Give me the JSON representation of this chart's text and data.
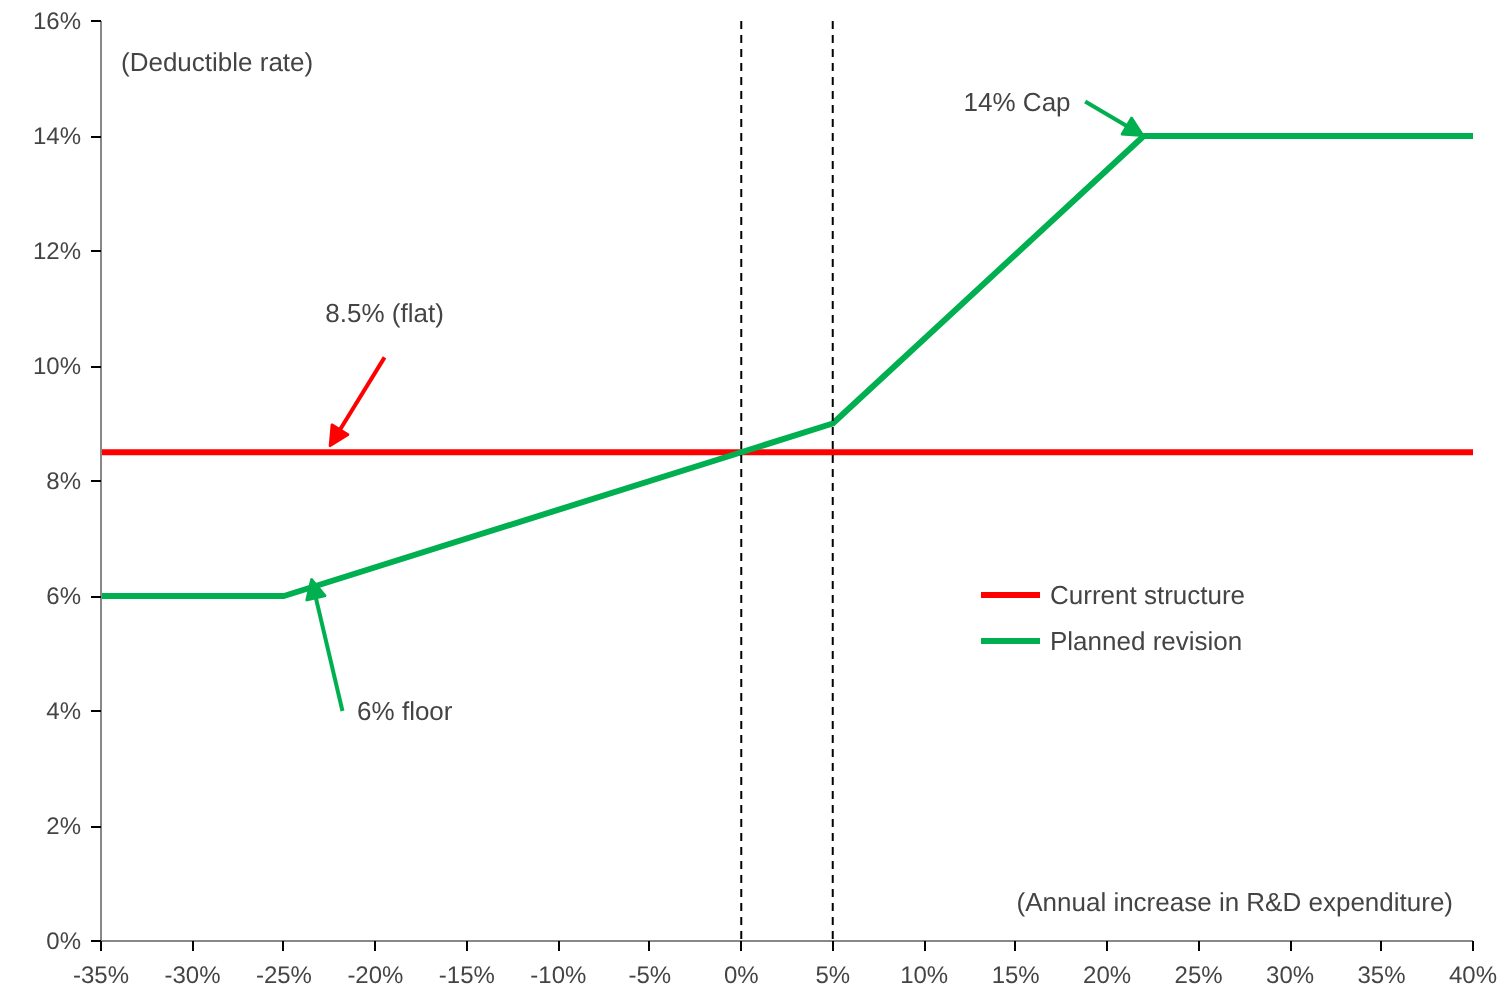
{
  "chart_data": {
    "type": "line",
    "xlabel": "(Annual increase in R&D expenditure)",
    "ylabel": "(Deductible rate)",
    "series": [
      {
        "name": "Current structure",
        "color": "#ff0000",
        "x": [
          -35,
          40
        ],
        "values": [
          8.5,
          8.5
        ]
      },
      {
        "name": "Planned revision",
        "color": "#00b050",
        "x": [
          -35,
          -25,
          0,
          5,
          22,
          40
        ],
        "values": [
          6,
          6,
          8.5,
          9,
          14,
          14
        ]
      }
    ],
    "xlim": [
      -35,
      40
    ],
    "xticks": [
      {
        "value": -35,
        "label": "-35%"
      },
      {
        "value": -30,
        "label": "-30%"
      },
      {
        "value": -25,
        "label": "-25%"
      },
      {
        "value": -20,
        "label": "-20%"
      },
      {
        "value": -15,
        "label": "-15%"
      },
      {
        "value": -10,
        "label": "-10%"
      },
      {
        "value": -5,
        "label": "-5%"
      },
      {
        "value": 0,
        "label": "0%"
      },
      {
        "value": 5,
        "label": "5%"
      },
      {
        "value": 10,
        "label": "10%"
      },
      {
        "value": 15,
        "label": "15%"
      },
      {
        "value": 20,
        "label": "20%"
      },
      {
        "value": 25,
        "label": "25%"
      },
      {
        "value": 30,
        "label": "30%"
      },
      {
        "value": 35,
        "label": "35%"
      },
      {
        "value": 40,
        "label": "40%"
      }
    ],
    "ylim": [
      0,
      16
    ],
    "yticks": [
      {
        "value": 0,
        "label": "0%"
      },
      {
        "value": 2,
        "label": "2%"
      },
      {
        "value": 4,
        "label": "4%"
      },
      {
        "value": 6,
        "label": "6%"
      },
      {
        "value": 8,
        "label": "8%"
      },
      {
        "value": 10,
        "label": "10%"
      },
      {
        "value": 12,
        "label": "12%"
      },
      {
        "value": 14,
        "label": "14%"
      },
      {
        "value": 16,
        "label": "16%"
      }
    ],
    "ref_lines": [
      {
        "axis": "x",
        "value": 0,
        "color": "#000000",
        "line_style": "dashed"
      },
      {
        "axis": "x",
        "value": 5,
        "color": "#000000",
        "line_style": "dashed"
      }
    ],
    "annotations": [
      {
        "text": "8.5% (flat)",
        "x": -22.5,
        "y": 8.6
      },
      {
        "text": "6% floor",
        "x": -23.5,
        "y": 6.3
      },
      {
        "text": "14% Cap",
        "x": 22,
        "y": 14
      }
    ],
    "grid": false,
    "legend": "right",
    "marker": "none",
    "line_style": "solid"
  }
}
